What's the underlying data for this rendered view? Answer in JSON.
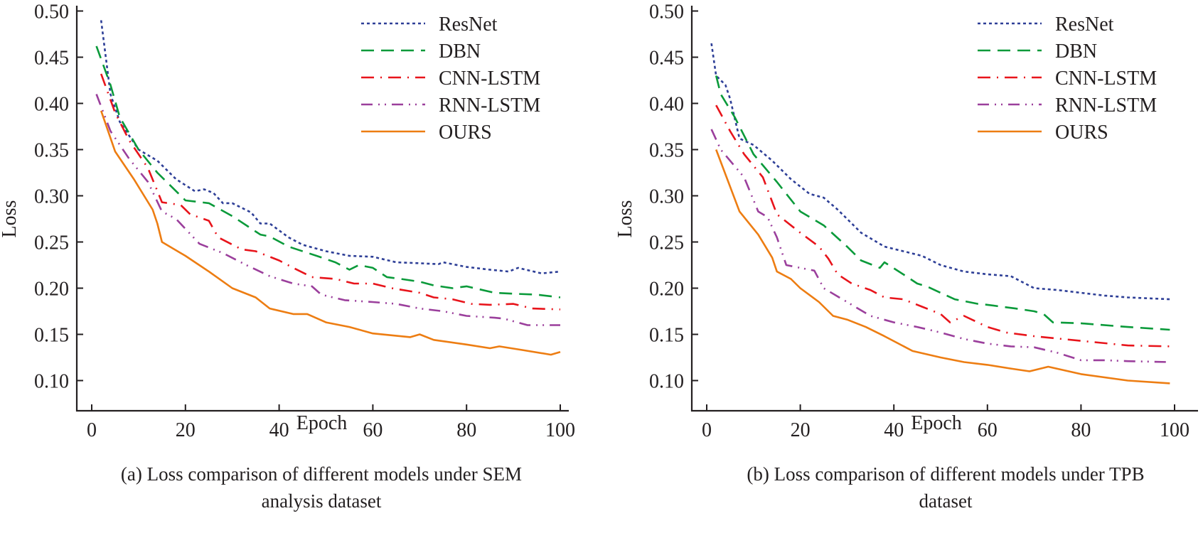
{
  "chart_data": [
    {
      "type": "line",
      "id": "a",
      "title": "",
      "caption_lines": [
        "(a) Loss comparison of different models under SEM",
        "analysis dataset"
      ],
      "xlabel": "Epoch",
      "ylabel": "Loss",
      "xlim": [
        -3,
        104
      ],
      "ylim": [
        0.075,
        0.505
      ],
      "xticks": [
        0,
        20,
        40,
        60,
        80,
        100
      ],
      "xtick_labels": [
        "0",
        "20",
        "40",
        "60",
        "80",
        "100"
      ],
      "yticks": [
        0.1,
        0.15,
        0.2,
        0.25,
        0.3,
        0.35,
        0.4,
        0.45,
        0.5
      ],
      "ytick_labels": [
        "0.10",
        "0.15",
        "0.20",
        "0.25",
        "0.30",
        "0.35",
        "0.40",
        "0.45",
        "0.50"
      ],
      "grid": false,
      "legend_position": "top-right",
      "series": [
        {
          "name": "ResNet",
          "color": "#2e3f97",
          "style": "dotted",
          "x": [
            2,
            4,
            6,
            10,
            14,
            18,
            22,
            24,
            26,
            28,
            30,
            34,
            36,
            38,
            42,
            45,
            50,
            55,
            60,
            65,
            70,
            74,
            75,
            80,
            85,
            89,
            91,
            96,
            100
          ],
          "y": [
            0.49,
            0.41,
            0.38,
            0.35,
            0.338,
            0.318,
            0.305,
            0.307,
            0.303,
            0.292,
            0.292,
            0.282,
            0.27,
            0.27,
            0.255,
            0.247,
            0.24,
            0.235,
            0.234,
            0.228,
            0.227,
            0.226,
            0.228,
            0.223,
            0.22,
            0.218,
            0.222,
            0.216,
            0.218
          ]
        },
        {
          "name": "DBN",
          "color": "#0a9a3a",
          "style": "dashed",
          "x": [
            1,
            4,
            6,
            10,
            14,
            20,
            25,
            30,
            36,
            38,
            42,
            48,
            52,
            55,
            57,
            60,
            63,
            66,
            70,
            73,
            77,
            80,
            86,
            90,
            95,
            100
          ],
          "y": [
            0.462,
            0.42,
            0.385,
            0.35,
            0.325,
            0.295,
            0.292,
            0.278,
            0.258,
            0.256,
            0.245,
            0.235,
            0.228,
            0.22,
            0.225,
            0.222,
            0.212,
            0.21,
            0.207,
            0.203,
            0.2,
            0.202,
            0.195,
            0.194,
            0.193,
            0.19
          ]
        },
        {
          "name": "CNN-LSTM",
          "color": "#e8141b",
          "style": "dashdot",
          "x": [
            2,
            5,
            8,
            12,
            15,
            19,
            21,
            25,
            27,
            32,
            35,
            40,
            43,
            47,
            52,
            56,
            60,
            64,
            70,
            73,
            77,
            81,
            85,
            90,
            94,
            100
          ],
          "y": [
            0.432,
            0.39,
            0.36,
            0.33,
            0.293,
            0.29,
            0.28,
            0.273,
            0.255,
            0.242,
            0.24,
            0.23,
            0.222,
            0.212,
            0.21,
            0.205,
            0.205,
            0.2,
            0.195,
            0.19,
            0.188,
            0.183,
            0.182,
            0.183,
            0.178,
            0.177
          ]
        },
        {
          "name": "RNN-LSTM",
          "color": "#9b3f9c",
          "style": "dashdotdot",
          "x": [
            1,
            4,
            8,
            12,
            15,
            18,
            23,
            28,
            33,
            38,
            43,
            47,
            49,
            54,
            60,
            65,
            70,
            75,
            80,
            86,
            88,
            93,
            100
          ],
          "y": [
            0.41,
            0.37,
            0.34,
            0.315,
            0.283,
            0.275,
            0.248,
            0.238,
            0.225,
            0.213,
            0.205,
            0.202,
            0.193,
            0.187,
            0.185,
            0.183,
            0.178,
            0.175,
            0.17,
            0.168,
            0.167,
            0.16,
            0.16
          ]
        },
        {
          "name": "OURS",
          "color": "#ed7d12",
          "style": "solid",
          "x": [
            2,
            5,
            9,
            13,
            14,
            15,
            20,
            25,
            30,
            35,
            38,
            43,
            46,
            50,
            55,
            60,
            68,
            70,
            73,
            80,
            85,
            87,
            92,
            98,
            100
          ],
          "y": [
            0.392,
            0.348,
            0.318,
            0.285,
            0.27,
            0.25,
            0.235,
            0.218,
            0.2,
            0.19,
            0.178,
            0.172,
            0.172,
            0.163,
            0.158,
            0.151,
            0.147,
            0.15,
            0.144,
            0.139,
            0.135,
            0.137,
            0.133,
            0.128,
            0.131
          ]
        }
      ]
    },
    {
      "type": "line",
      "id": "b",
      "title": "",
      "caption_lines": [
        "(b) Loss comparison of different models under TPB",
        "dataset"
      ],
      "xlabel": "Epoch",
      "ylabel": "Loss",
      "xlim": [
        -3,
        104
      ],
      "ylim": [
        0.075,
        0.505
      ],
      "xticks": [
        0,
        20,
        40,
        60,
        80,
        100
      ],
      "xtick_labels": [
        "0",
        "20",
        "40",
        "60",
        "80",
        "100"
      ],
      "yticks": [
        0.1,
        0.15,
        0.2,
        0.25,
        0.3,
        0.35,
        0.4,
        0.45,
        0.5
      ],
      "ytick_labels": [
        "0.10",
        "0.15",
        "0.20",
        "0.25",
        "0.30",
        "0.35",
        "0.40",
        "0.45",
        "0.50"
      ],
      "grid": false,
      "legend_position": "top-right",
      "series": [
        {
          "name": "ResNet",
          "color": "#2e3f97",
          "style": "dotted",
          "x": [
            1,
            2,
            4,
            5,
            7,
            10,
            14,
            18,
            22,
            25,
            28,
            30,
            33,
            38,
            42,
            46,
            50,
            55,
            60,
            65,
            70,
            75,
            80,
            85,
            90,
            99
          ],
          "y": [
            0.465,
            0.43,
            0.42,
            0.405,
            0.362,
            0.355,
            0.338,
            0.318,
            0.302,
            0.298,
            0.285,
            0.275,
            0.26,
            0.245,
            0.24,
            0.235,
            0.225,
            0.218,
            0.215,
            0.213,
            0.2,
            0.198,
            0.195,
            0.192,
            0.19,
            0.188
          ]
        },
        {
          "name": "DBN",
          "color": "#0a9a3a",
          "style": "dashed",
          "x": [
            2,
            3,
            6,
            10,
            15,
            20,
            25,
            30,
            33,
            37,
            38,
            42,
            45,
            47,
            50,
            53,
            58,
            60,
            63,
            66,
            70,
            72,
            74,
            80,
            90,
            99
          ],
          "y": [
            0.43,
            0.41,
            0.385,
            0.345,
            0.315,
            0.283,
            0.268,
            0.245,
            0.23,
            0.222,
            0.228,
            0.215,
            0.205,
            0.202,
            0.195,
            0.188,
            0.183,
            0.182,
            0.18,
            0.178,
            0.175,
            0.172,
            0.163,
            0.162,
            0.158,
            0.155
          ]
        },
        {
          "name": "CNN-LSTM",
          "color": "#e8141b",
          "style": "dashdot",
          "x": [
            2,
            5,
            8,
            12,
            15,
            20,
            24,
            26,
            28,
            31,
            35,
            38,
            42,
            46,
            50,
            52,
            55,
            60,
            64,
            70,
            80,
            90,
            99
          ],
          "y": [
            0.398,
            0.37,
            0.345,
            0.32,
            0.28,
            0.26,
            0.245,
            0.232,
            0.215,
            0.205,
            0.198,
            0.19,
            0.188,
            0.18,
            0.172,
            0.163,
            0.17,
            0.158,
            0.152,
            0.148,
            0.143,
            0.138,
            0.137
          ]
        },
        {
          "name": "RNN-LSTM",
          "color": "#9b3f9c",
          "style": "dashdotdot",
          "x": [
            1,
            3,
            8,
            11,
            13,
            15,
            17,
            20,
            23,
            25,
            30,
            35,
            40,
            45,
            50,
            55,
            60,
            65,
            70,
            75,
            80,
            85,
            90,
            99
          ],
          "y": [
            0.372,
            0.35,
            0.32,
            0.283,
            0.277,
            0.255,
            0.225,
            0.222,
            0.219,
            0.2,
            0.185,
            0.17,
            0.163,
            0.158,
            0.152,
            0.145,
            0.14,
            0.137,
            0.136,
            0.13,
            0.122,
            0.122,
            0.121,
            0.12
          ]
        },
        {
          "name": "OURS",
          "color": "#ed7d12",
          "style": "solid",
          "x": [
            2,
            7,
            11,
            14,
            15,
            18,
            20,
            24,
            27,
            30,
            34,
            38,
            41,
            44,
            50,
            55,
            60,
            65,
            69,
            73,
            80,
            90,
            99
          ],
          "y": [
            0.35,
            0.283,
            0.258,
            0.233,
            0.218,
            0.21,
            0.2,
            0.185,
            0.17,
            0.166,
            0.158,
            0.148,
            0.14,
            0.132,
            0.125,
            0.12,
            0.117,
            0.113,
            0.11,
            0.115,
            0.107,
            0.1,
            0.097
          ]
        }
      ]
    }
  ]
}
